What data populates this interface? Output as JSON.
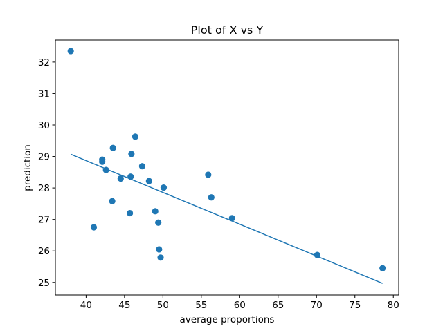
{
  "chart_data": {
    "type": "scatter",
    "title": "Plot of X vs Y",
    "xlabel": "average proportions",
    "ylabel": "prediction",
    "xlim": [
      36.0,
      80.7
    ],
    "ylim": [
      24.6,
      32.7
    ],
    "xticks": [
      40,
      45,
      50,
      55,
      60,
      65,
      70,
      75,
      80
    ],
    "yticks": [
      25,
      26,
      27,
      28,
      29,
      30,
      31,
      32
    ],
    "grid": false,
    "legend": "none",
    "series": [
      {
        "kind": "scatter",
        "color": "#1f77b4",
        "points": [
          {
            "x": 38.0,
            "y": 32.35
          },
          {
            "x": 41.0,
            "y": 26.75
          },
          {
            "x": 42.1,
            "y": 28.9
          },
          {
            "x": 42.1,
            "y": 28.83
          },
          {
            "x": 42.6,
            "y": 28.57
          },
          {
            "x": 43.4,
            "y": 27.58
          },
          {
            "x": 43.5,
            "y": 29.27
          },
          {
            "x": 44.5,
            "y": 28.3
          },
          {
            "x": 45.7,
            "y": 27.2
          },
          {
            "x": 45.8,
            "y": 28.36
          },
          {
            "x": 45.9,
            "y": 29.08
          },
          {
            "x": 46.4,
            "y": 29.63
          },
          {
            "x": 47.3,
            "y": 28.69
          },
          {
            "x": 48.2,
            "y": 28.22
          },
          {
            "x": 49.0,
            "y": 27.26
          },
          {
            "x": 49.4,
            "y": 26.9
          },
          {
            "x": 49.5,
            "y": 26.05
          },
          {
            "x": 49.7,
            "y": 25.79
          },
          {
            "x": 50.1,
            "y": 28.01
          },
          {
            "x": 55.9,
            "y": 28.42
          },
          {
            "x": 56.3,
            "y": 27.7
          },
          {
            "x": 59.0,
            "y": 27.04
          },
          {
            "x": 70.1,
            "y": 25.87
          },
          {
            "x": 78.6,
            "y": 25.45
          }
        ]
      },
      {
        "kind": "line",
        "color": "#1f77b4",
        "points": [
          {
            "x": 38.0,
            "y": 29.07
          },
          {
            "x": 78.6,
            "y": 24.97
          }
        ]
      }
    ]
  }
}
